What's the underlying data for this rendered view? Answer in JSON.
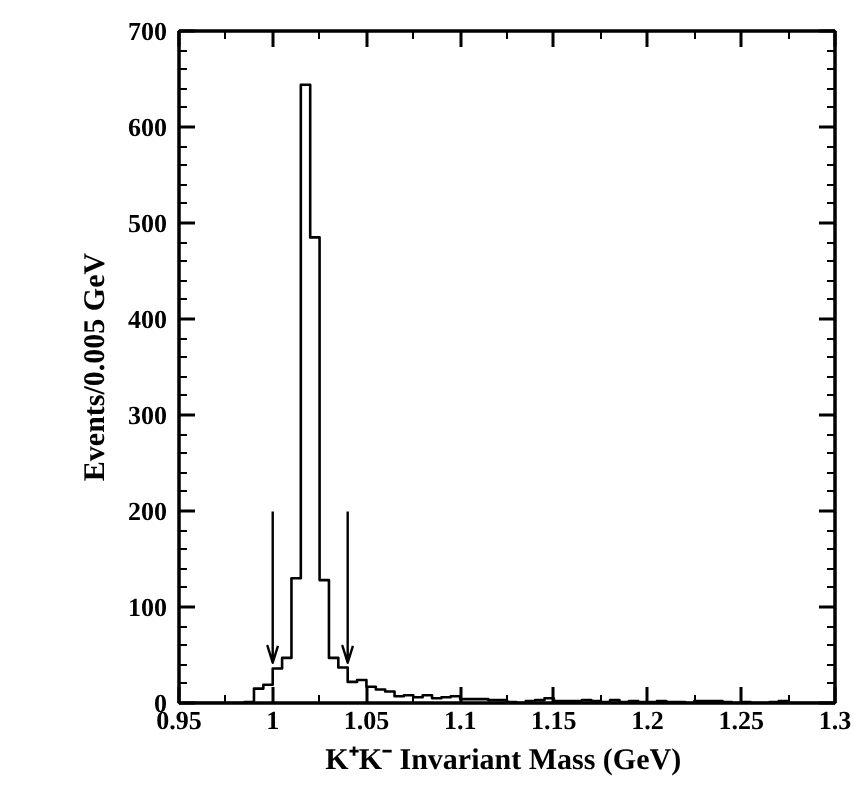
{
  "chart_data": {
    "type": "histogram",
    "xlabel": "K⁺K⁻ Invariant Mass  (GeV)",
    "ylabel": "Events/0.005 GeV",
    "bins": [
      0.95,
      0.955,
      0.96,
      0.965,
      0.97,
      0.975,
      0.98,
      0.985,
      0.99,
      0.995,
      1.0,
      1.005,
      1.01,
      1.015,
      1.02,
      1.025,
      1.03,
      1.035,
      1.04,
      1.045,
      1.05,
      1.055,
      1.06,
      1.065,
      1.07,
      1.075,
      1.08,
      1.085,
      1.09,
      1.095,
      1.1,
      1.105,
      1.11,
      1.115,
      1.12,
      1.125,
      1.13,
      1.135,
      1.14,
      1.145,
      1.15,
      1.155,
      1.16,
      1.165,
      1.17,
      1.175,
      1.18,
      1.185,
      1.19,
      1.195,
      1.2,
      1.205,
      1.21,
      1.215,
      1.22,
      1.225,
      1.23,
      1.235,
      1.24,
      1.245,
      1.25,
      1.255,
      1.26,
      1.265,
      1.27,
      1.275,
      1.28,
      1.285,
      1.29,
      1.295,
      1.3
    ],
    "values": [
      0,
      0,
      0,
      0,
      0,
      0,
      0,
      1,
      15,
      19,
      36,
      47,
      130,
      644,
      485,
      128,
      47,
      37,
      22,
      24,
      17,
      14,
      12,
      7,
      8,
      6,
      8,
      5,
      6,
      7,
      4,
      4,
      4,
      3,
      3,
      1,
      0,
      2,
      3,
      5,
      2,
      2,
      2,
      3,
      2,
      1,
      3,
      1,
      2,
      1,
      1,
      2,
      1,
      1,
      0,
      2,
      2,
      2,
      1,
      0,
      1,
      0,
      0,
      1,
      2,
      0,
      0,
      0,
      0,
      0
    ],
    "color": "#000000",
    "xlim": [
      0.95,
      1.3
    ],
    "ylim": [
      0,
      700
    ],
    "xticks": [
      0.95,
      1,
      1.05,
      1.1,
      1.15,
      1.2,
      1.25,
      1.3
    ],
    "yticks": [
      0,
      100,
      200,
      300,
      400,
      500,
      600,
      700
    ],
    "ref_lines": [
      {
        "axis": "x",
        "value": 1.0
      },
      {
        "axis": "x",
        "value": 1.04
      }
    ],
    "grid": false
  }
}
